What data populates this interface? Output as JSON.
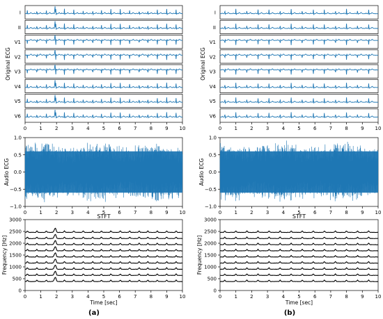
{
  "colors": {
    "signal": "#1f77b4",
    "stft_trace": "#000000",
    "frame": "#000000",
    "background": "#ffffff"
  },
  "chart_data": [
    {
      "type": "line",
      "panel": "a",
      "panel_label": "(a)",
      "sections": [
        {
          "name": "ecg_leads",
          "ylabel": "Original ECG",
          "leads": [
            "I",
            "II",
            "V1",
            "V2",
            "V3",
            "V4",
            "V5",
            "V6"
          ],
          "x_ticks": [
            0,
            1,
            2,
            3,
            4,
            5,
            6,
            7,
            8,
            9,
            10
          ],
          "xlim": [
            0,
            10
          ],
          "beat_times": [
            0.15,
            0.75,
            1.35,
            1.95,
            2.5,
            3.1,
            3.7,
            4.3,
            4.85,
            5.45,
            6.05,
            6.65,
            7.25,
            7.8,
            8.4,
            9.0,
            9.6
          ],
          "artifact_time": 1.9
        },
        {
          "name": "audio",
          "ylabel": "Audio ECG",
          "xlim": [
            0,
            10
          ],
          "ylim": [
            -1.0,
            1.0
          ],
          "y_ticks": [
            "1.0",
            "0.5",
            "0.0",
            "−0.5",
            "−1.0"
          ],
          "x_ticks": [
            0,
            1,
            2,
            3,
            4,
            5,
            6,
            7,
            8,
            9,
            10
          ]
        },
        {
          "name": "stft",
          "title": "STFT",
          "xlabel": "Time [sec]",
          "ylabel": "Frequency [Hz]",
          "xlim": [
            0,
            10
          ],
          "ylim": [
            0,
            3000
          ],
          "y_ticks": [
            "0",
            "500",
            "1000",
            "1500",
            "2000",
            "2500",
            "3000"
          ],
          "x_ticks": [
            0,
            1,
            2,
            3,
            4,
            5,
            6,
            7,
            8,
            9,
            10
          ],
          "bands_hz": [
            380,
            640,
            900,
            1160,
            1420,
            1680,
            1940,
            2200,
            2460
          ]
        }
      ]
    },
    {
      "type": "line",
      "panel": "b",
      "panel_label": "(b)",
      "sections": [
        {
          "name": "ecg_leads",
          "ylabel": "Original ECG",
          "leads": [
            "I",
            "II",
            "V1",
            "V2",
            "V3",
            "V4",
            "V5",
            "V6"
          ],
          "x_ticks": [
            0,
            1,
            2,
            3,
            4,
            5,
            6,
            7,
            8,
            9,
            10
          ],
          "xlim": [
            0,
            10
          ],
          "beat_times": [
            0.3,
            1.0,
            1.7,
            2.4,
            3.1,
            3.8,
            4.5,
            5.2,
            5.9,
            6.6,
            7.3,
            8.0,
            8.7,
            9.4
          ],
          "artifact_time": null
        },
        {
          "name": "audio",
          "ylabel": "Audio ECG",
          "xlim": [
            0,
            10
          ],
          "ylim": [
            -1.0,
            1.0
          ],
          "y_ticks": [
            "1.0",
            "0.5",
            "0.0",
            "−0.5",
            "−1.0"
          ],
          "x_ticks": [
            0,
            1,
            2,
            3,
            4,
            5,
            6,
            7,
            8,
            9,
            10
          ]
        },
        {
          "name": "stft",
          "title": "STFT",
          "xlabel": "Time [sec]",
          "ylabel": "Frequency [Hz]",
          "xlim": [
            0,
            10
          ],
          "ylim": [
            0,
            3000
          ],
          "y_ticks": [
            "0",
            "500",
            "1000",
            "1500",
            "2000",
            "2500",
            "3000"
          ],
          "x_ticks": [
            0,
            1,
            2,
            3,
            4,
            5,
            6,
            7,
            8,
            9,
            10
          ],
          "bands_hz": [
            380,
            640,
            900,
            1160,
            1420,
            1680,
            1940,
            2200,
            2460
          ]
        }
      ]
    }
  ]
}
